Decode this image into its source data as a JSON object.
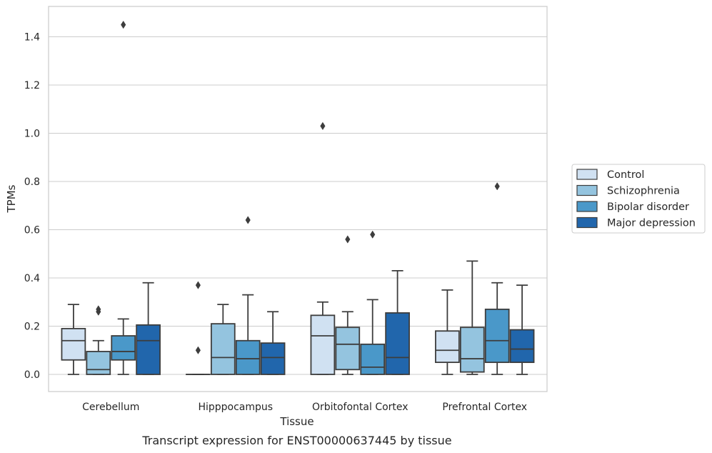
{
  "chart_data": {
    "type": "box",
    "xlabel": "Tissue",
    "ylabel": "TPMs",
    "caption": "Transcript expression for ENST00000637445 by tissue",
    "ylim": [
      -0.07,
      1.53
    ],
    "yticks": [
      "0.0",
      "0.2",
      "0.4",
      "0.6",
      "0.8",
      "1.0",
      "1.2",
      "1.4"
    ],
    "yticks_values": [
      0.0,
      0.2,
      0.4,
      0.6,
      0.8,
      1.0,
      1.2,
      1.4
    ],
    "grid": "horizontal",
    "legend_position": "right",
    "categories": [
      "Cerebellum",
      "Hipppocampus",
      "Orbitofontal Cortex",
      "Prefrontal Cortex"
    ],
    "series": [
      {
        "name": "Control",
        "color": "#d0e1f2",
        "boxes": [
          {
            "low": 0.0,
            "q1": 0.06,
            "median": 0.14,
            "q3": 0.19,
            "high": 0.29,
            "outliers": []
          },
          {
            "low": 0.0,
            "q1": 0.0,
            "median": 0.0,
            "q3": 0.0,
            "high": 0.0,
            "outliers": [
              0.37,
              0.1
            ]
          },
          {
            "low": 0.0,
            "q1": 0.0,
            "median": 0.16,
            "q3": 0.245,
            "high": 0.3,
            "outliers": [
              1.03
            ]
          },
          {
            "low": 0.0,
            "q1": 0.05,
            "median": 0.1,
            "q3": 0.18,
            "high": 0.35,
            "outliers": []
          }
        ]
      },
      {
        "name": "Schizophrenia",
        "color": "#94c4df",
        "boxes": [
          {
            "low": 0.0,
            "q1": 0.0,
            "median": 0.02,
            "q3": 0.095,
            "high": 0.14,
            "outliers": [
              0.27,
              0.26
            ]
          },
          {
            "low": 0.0,
            "q1": 0.0,
            "median": 0.07,
            "q3": 0.21,
            "high": 0.29,
            "outliers": []
          },
          {
            "low": 0.0,
            "q1": 0.02,
            "median": 0.125,
            "q3": 0.195,
            "high": 0.26,
            "outliers": [
              0.56
            ]
          },
          {
            "low": 0.0,
            "q1": 0.01,
            "median": 0.065,
            "q3": 0.195,
            "high": 0.47,
            "outliers": []
          }
        ]
      },
      {
        "name": "Bipolar disorder",
        "color": "#4a98c9",
        "boxes": [
          {
            "low": 0.0,
            "q1": 0.06,
            "median": 0.095,
            "q3": 0.16,
            "high": 0.23,
            "outliers": [
              1.45
            ]
          },
          {
            "low": 0.0,
            "q1": 0.0,
            "median": 0.065,
            "q3": 0.14,
            "high": 0.33,
            "outliers": [
              0.64
            ]
          },
          {
            "low": 0.0,
            "q1": 0.0,
            "median": 0.03,
            "q3": 0.125,
            "high": 0.31,
            "outliers": [
              0.58
            ]
          },
          {
            "low": 0.0,
            "q1": 0.05,
            "median": 0.14,
            "q3": 0.27,
            "high": 0.38,
            "outliers": [
              0.78
            ]
          }
        ]
      },
      {
        "name": "Major depression",
        "color": "#2166ac",
        "boxes": [
          {
            "low": 0.0,
            "q1": 0.0,
            "median": 0.14,
            "q3": 0.205,
            "high": 0.38,
            "outliers": []
          },
          {
            "low": 0.0,
            "q1": 0.0,
            "median": 0.07,
            "q3": 0.13,
            "high": 0.26,
            "outliers": []
          },
          {
            "low": 0.0,
            "q1": 0.0,
            "median": 0.07,
            "q3": 0.255,
            "high": 0.43,
            "outliers": []
          },
          {
            "low": 0.0,
            "q1": 0.05,
            "median": 0.105,
            "q3": 0.185,
            "high": 0.37,
            "outliers": []
          }
        ]
      }
    ]
  }
}
